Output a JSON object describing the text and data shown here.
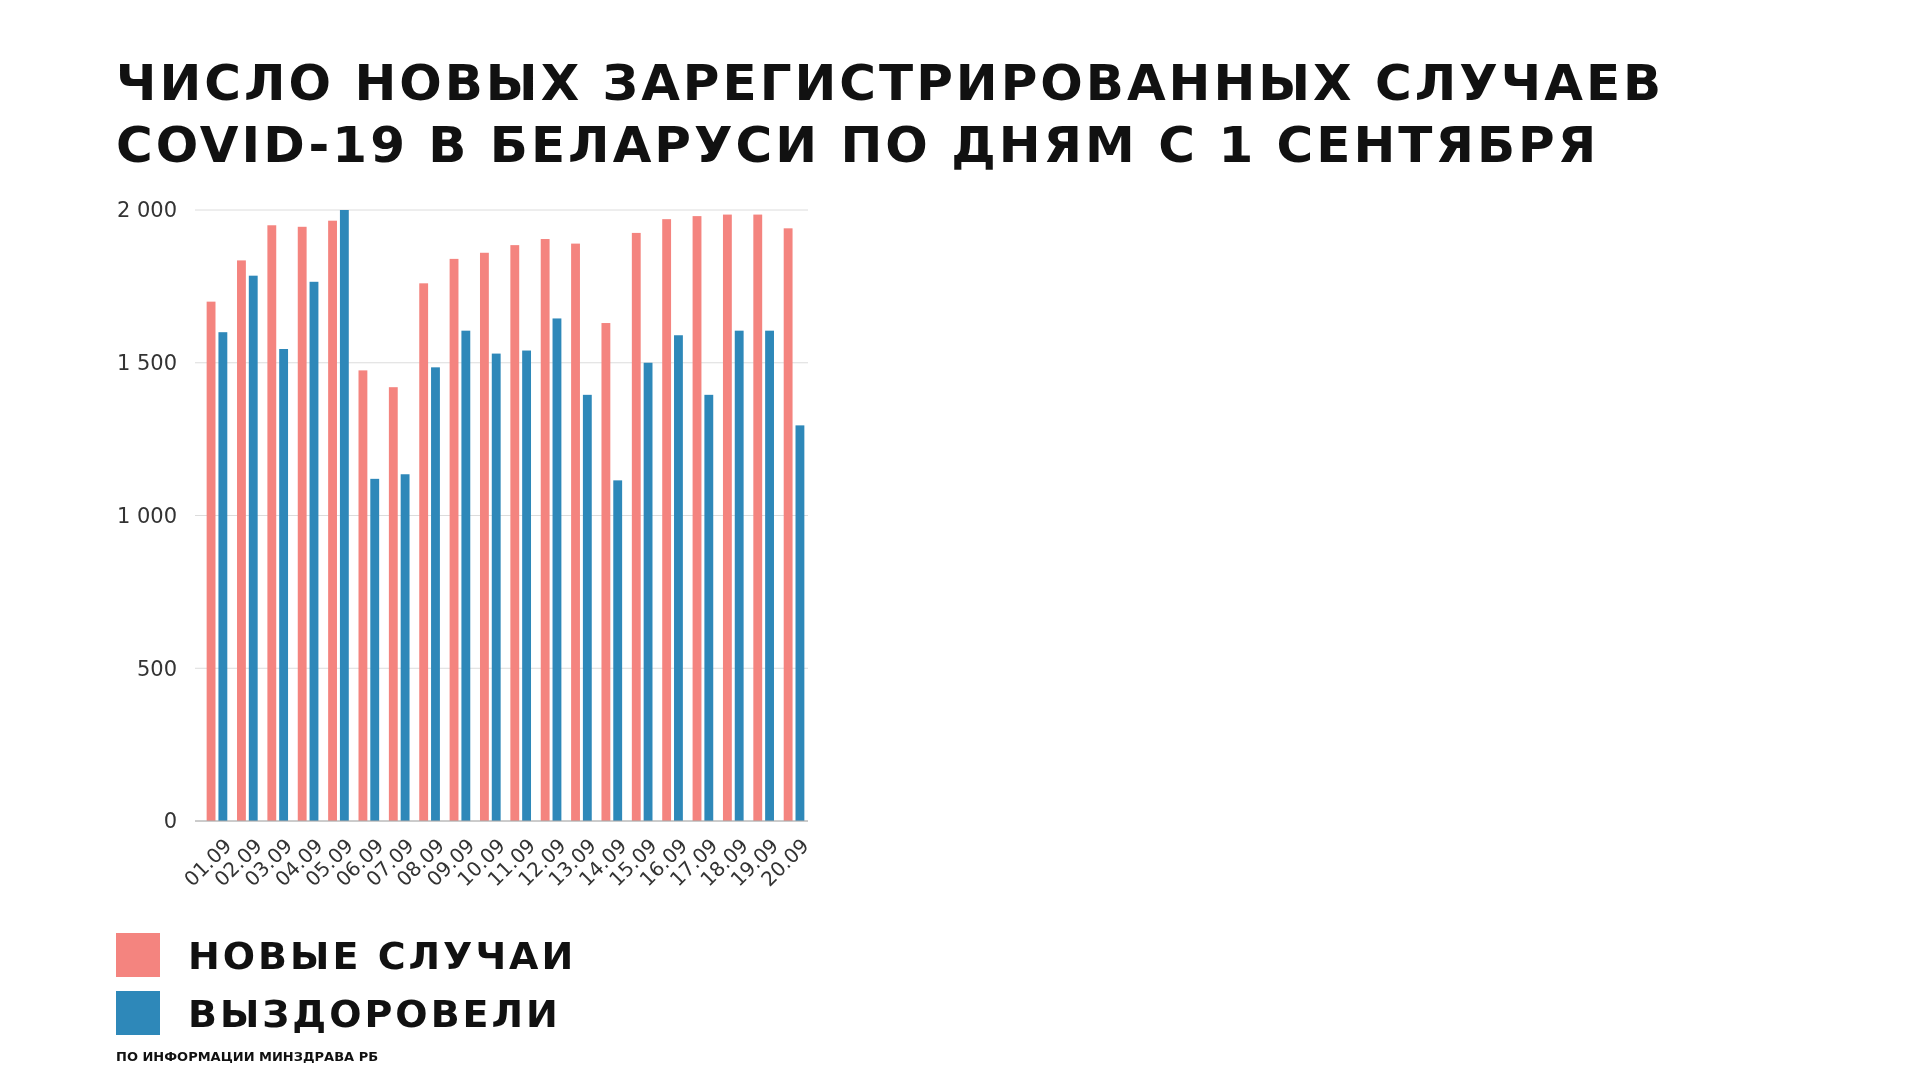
{
  "chart_data": {
    "type": "bar",
    "title": "ЧИСЛО НОВЫХ ЗАРЕГИСТРИРОВАННЫХ СЛУЧАЕВ COVID-19 В БЕЛАРУСИ ПО ДНЯМ С 1 СЕНТЯБРЯ",
    "categories": [
      "01.09",
      "02.09",
      "03.09",
      "04.09",
      "05.09",
      "06.09",
      "07.09",
      "08.09",
      "09.09",
      "10.09",
      "11.09",
      "12.09",
      "13.09",
      "14.09",
      "15.09",
      "16.09",
      "17.09",
      "18.09",
      "19.09",
      "20.09"
    ],
    "series": [
      {
        "name": "НОВЫЕ СЛУЧАИ",
        "color": "#f4847f",
        "values": [
          1700,
          1835,
          1950,
          1945,
          1965,
          1475,
          1420,
          1760,
          1840,
          1860,
          1885,
          1905,
          1890,
          1630,
          1925,
          1970,
          1980,
          1985,
          1985,
          1940
        ]
      },
      {
        "name": "ВЫЗДОРОВЕЛИ",
        "color": "#2e88b9",
        "values": [
          1600,
          1785,
          1545,
          1765,
          2000,
          1120,
          1135,
          1485,
          1605,
          1530,
          1540,
          1645,
          1395,
          1115,
          1500,
          1590,
          1395,
          1605,
          1605,
          1295
        ]
      }
    ],
    "ylim": [
      0,
      2000
    ],
    "yticks": [
      0,
      500,
      {
        "value": 1000,
        "label": "1 000"
      },
      {
        "value": 1500,
        "label": "1 500"
      },
      {
        "value": 2000,
        "label": "2 000"
      }
    ],
    "grid": "y",
    "legend": "bottom left",
    "annotations": [
      "ПО ИНФОРМАЦИИ МИНЗДРАВА РБ"
    ]
  }
}
